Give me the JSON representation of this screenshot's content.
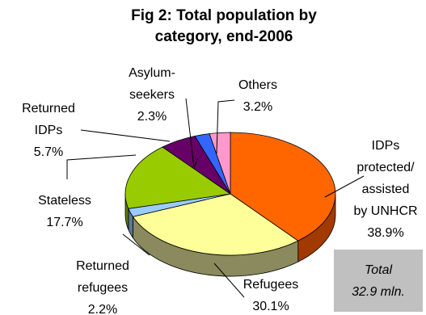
{
  "chart_data": {
    "type": "pie",
    "title_lines": [
      "Fig 2: Total population by",
      "category, end-2006"
    ],
    "slices": [
      {
        "label_lines": [
          "IDPs",
          "protected/",
          "assisted",
          "by UNHCR"
        ],
        "value_text": "38.9%",
        "value": 38.9,
        "color": "#ff6600",
        "side": "#a23a00"
      },
      {
        "label_lines": [
          "Refugees"
        ],
        "value_text": "30.1%",
        "value": 30.1,
        "color": "#ffff99",
        "side": "#8a8a5e"
      },
      {
        "label_lines": [
          "Returned",
          "refugees"
        ],
        "value_text": "2.2%",
        "value": 2.2,
        "color": "#99ccff",
        "side": "#5a7a99"
      },
      {
        "label_lines": [
          "Stateless"
        ],
        "value_text": "17.7%",
        "value": 17.7,
        "color": "#99cc00",
        "side": "#5e7d00"
      },
      {
        "label_lines": [
          "Returned",
          "IDPs"
        ],
        "value_text": "5.7%",
        "value": 5.7,
        "color": "#660066",
        "side": "#330033"
      },
      {
        "label_lines": [
          "Asylum-",
          "seekers"
        ],
        "value_text": "2.3%",
        "value": 2.3,
        "color": "#3366ff",
        "side": "#1f3d99"
      },
      {
        "label_lines": [
          "Others"
        ],
        "value_text": "3.2%",
        "value": 3.2,
        "color": "#ff99cc",
        "side": "#995c7a"
      }
    ],
    "total_lines": [
      "Total",
      "32.9 mln."
    ]
  }
}
